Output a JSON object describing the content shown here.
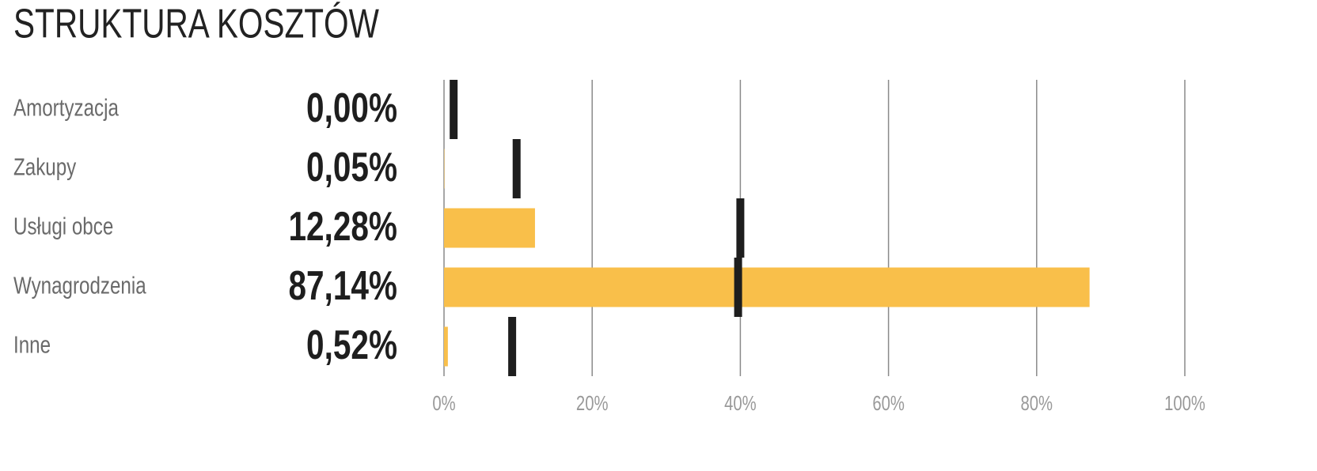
{
  "chart_data": {
    "type": "bar",
    "orientation": "horizontal",
    "title": "STRUKTURA KOSZTÓW",
    "categories": [
      "Amortyzacja",
      "Zakupy",
      "Usługi obce",
      "Wynagrodzenia",
      "Inne"
    ],
    "values": [
      0,
      0.05,
      12.28,
      87.14,
      0.52
    ],
    "value_labels": [
      "0,00%",
      "0,05%",
      "12,28%",
      "87,14%",
      "0,52%"
    ],
    "color": "#f9bf4a",
    "markers": [
      1.3,
      9.8,
      40,
      39.7,
      9.2
    ],
    "marker_color": "#1e1e1e",
    "xlim": [
      0,
      100
    ],
    "xticks": [
      {
        "value": 0,
        "label": "0%"
      },
      {
        "value": 20,
        "label": "20%"
      },
      {
        "value": 40,
        "label": "40%"
      },
      {
        "value": 60,
        "label": "60%"
      },
      {
        "value": 80,
        "label": "80%"
      },
      {
        "value": 100,
        "label": "100%"
      }
    ],
    "grid": true
  }
}
